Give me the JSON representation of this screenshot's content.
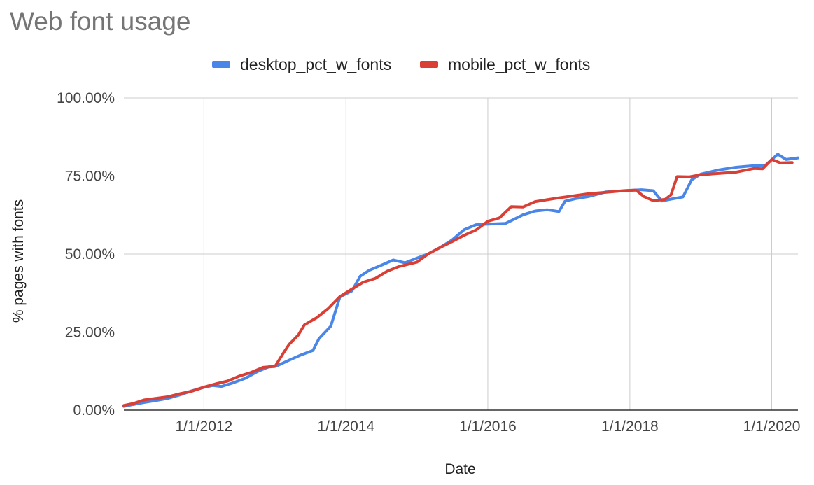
{
  "chart_data": {
    "type": "line",
    "title": "Web font usage",
    "xlabel": "Date",
    "ylabel": "% pages with fonts",
    "ylim": [
      0,
      100
    ],
    "xlim": [
      "2010-11-15",
      "2020-05-15"
    ],
    "grid": true,
    "legend_position": "top",
    "x_ticks": [
      "1/1/2012",
      "1/1/2014",
      "1/1/2016",
      "1/1/2018",
      "1/1/2020"
    ],
    "y_ticks": [
      "0.00%",
      "25.00%",
      "50.00%",
      "75.00%",
      "100.00%"
    ],
    "series": [
      {
        "name": "desktop_pct_w_fonts",
        "color": "#4a86e8",
        "points": [
          [
            "2010-11-15",
            1.2
          ],
          [
            "2011-01-01",
            1.8
          ],
          [
            "2011-03-01",
            2.5
          ],
          [
            "2011-05-01",
            3.1
          ],
          [
            "2011-07-01",
            3.8
          ],
          [
            "2011-09-01",
            4.9
          ],
          [
            "2011-11-01",
            6.2
          ],
          [
            "2012-01-01",
            7.3
          ],
          [
            "2012-02-15",
            7.9
          ],
          [
            "2012-04-01",
            7.6
          ],
          [
            "2012-06-01",
            8.8
          ],
          [
            "2012-08-01",
            10.2
          ],
          [
            "2012-10-01",
            12.3
          ],
          [
            "2012-12-01",
            13.9
          ],
          [
            "2013-01-15",
            14.3
          ],
          [
            "2013-03-15",
            16.0
          ],
          [
            "2013-05-15",
            17.7
          ],
          [
            "2013-07-15",
            19.1
          ],
          [
            "2013-08-15",
            22.9
          ],
          [
            "2013-10-15",
            26.9
          ],
          [
            "2013-12-01",
            36.3
          ],
          [
            "2014-02-01",
            38.2
          ],
          [
            "2014-03-15",
            42.9
          ],
          [
            "2014-05-01",
            44.8
          ],
          [
            "2014-07-01",
            46.4
          ],
          [
            "2014-09-01",
            48.1
          ],
          [
            "2014-11-01",
            47.2
          ],
          [
            "2015-01-01",
            48.7
          ],
          [
            "2015-03-01",
            50.1
          ],
          [
            "2015-05-01",
            52.1
          ],
          [
            "2015-07-01",
            54.5
          ],
          [
            "2015-09-01",
            57.8
          ],
          [
            "2015-11-01",
            59.4
          ],
          [
            "2016-01-01",
            59.6
          ],
          [
            "2016-04-01",
            59.8
          ],
          [
            "2016-07-01",
            62.6
          ],
          [
            "2016-09-01",
            63.8
          ],
          [
            "2016-11-01",
            64.2
          ],
          [
            "2017-01-01",
            63.6
          ],
          [
            "2017-02-01",
            66.9
          ],
          [
            "2017-04-01",
            67.8
          ],
          [
            "2017-06-01",
            68.4
          ],
          [
            "2017-09-01",
            69.9
          ],
          [
            "2017-12-01",
            70.3
          ],
          [
            "2018-03-01",
            70.6
          ],
          [
            "2018-05-01",
            70.3
          ],
          [
            "2018-06-15",
            67.0
          ],
          [
            "2018-08-01",
            67.6
          ],
          [
            "2018-10-01",
            68.3
          ],
          [
            "2018-11-15",
            73.8
          ],
          [
            "2019-01-01",
            75.6
          ],
          [
            "2019-04-01",
            76.9
          ],
          [
            "2019-07-01",
            77.8
          ],
          [
            "2019-10-01",
            78.3
          ],
          [
            "2019-12-01",
            78.5
          ],
          [
            "2020-02-01",
            82.0
          ],
          [
            "2020-03-15",
            80.3
          ],
          [
            "2020-05-15",
            80.8
          ]
        ]
      },
      {
        "name": "mobile_pct_w_fonts",
        "color": "#d93f35",
        "points": [
          [
            "2010-11-15",
            1.5
          ],
          [
            "2011-01-01",
            2.1
          ],
          [
            "2011-03-01",
            3.3
          ],
          [
            "2011-05-01",
            3.8
          ],
          [
            "2011-07-01",
            4.3
          ],
          [
            "2011-09-01",
            5.3
          ],
          [
            "2011-11-01",
            6.1
          ],
          [
            "2012-01-01",
            7.4
          ],
          [
            "2012-03-01",
            8.4
          ],
          [
            "2012-05-01",
            9.3
          ],
          [
            "2012-07-01",
            10.9
          ],
          [
            "2012-09-01",
            12.1
          ],
          [
            "2012-11-01",
            13.7
          ],
          [
            "2013-01-01",
            14.0
          ],
          [
            "2013-02-15",
            18.5
          ],
          [
            "2013-03-15",
            21.1
          ],
          [
            "2013-05-01",
            24.1
          ],
          [
            "2013-06-01",
            27.3
          ],
          [
            "2013-08-01",
            29.5
          ],
          [
            "2013-10-01",
            32.5
          ],
          [
            "2013-12-01",
            36.4
          ],
          [
            "2014-02-01",
            38.8
          ],
          [
            "2014-04-01",
            41.0
          ],
          [
            "2014-06-01",
            42.2
          ],
          [
            "2014-08-01",
            44.5
          ],
          [
            "2014-10-01",
            46.0
          ],
          [
            "2015-01-01",
            47.4
          ],
          [
            "2015-03-01",
            50.1
          ],
          [
            "2015-05-01",
            52.1
          ],
          [
            "2015-07-01",
            54.0
          ],
          [
            "2015-09-01",
            56.0
          ],
          [
            "2015-11-01",
            57.7
          ],
          [
            "2016-01-01",
            60.5
          ],
          [
            "2016-03-01",
            61.6
          ],
          [
            "2016-05-01",
            65.2
          ],
          [
            "2016-07-01",
            65.1
          ],
          [
            "2016-09-01",
            66.8
          ],
          [
            "2016-11-01",
            67.4
          ],
          [
            "2017-01-01",
            68.0
          ],
          [
            "2017-03-01",
            68.5
          ],
          [
            "2017-06-01",
            69.3
          ],
          [
            "2017-09-01",
            69.8
          ],
          [
            "2017-12-01",
            70.3
          ],
          [
            "2018-02-01",
            70.5
          ],
          [
            "2018-03-15",
            68.4
          ],
          [
            "2018-05-01",
            67.1
          ],
          [
            "2018-07-01",
            67.5
          ],
          [
            "2018-08-01",
            69.0
          ],
          [
            "2018-09-01",
            74.8
          ],
          [
            "2018-11-01",
            74.7
          ],
          [
            "2019-01-01",
            75.4
          ],
          [
            "2019-04-01",
            75.8
          ],
          [
            "2019-07-01",
            76.2
          ],
          [
            "2019-10-01",
            77.4
          ],
          [
            "2019-11-15",
            77.3
          ],
          [
            "2020-01-01",
            80.3
          ],
          [
            "2020-02-15",
            79.2
          ],
          [
            "2020-04-15",
            79.3
          ]
        ]
      }
    ]
  }
}
